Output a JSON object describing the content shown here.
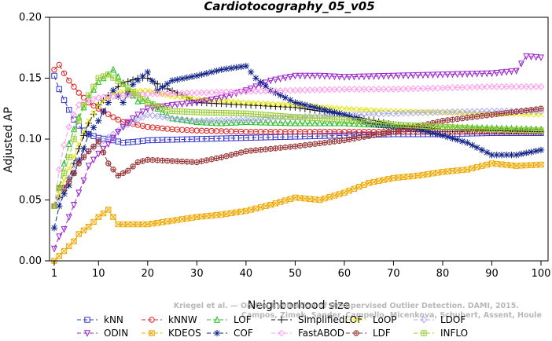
{
  "chart_data": {
    "type": "line",
    "title": "Cardiotocography_05_v05",
    "xlabel": "Neighborhood size",
    "ylabel": "Adjusted AP",
    "xlim": [
      1,
      100
    ],
    "ylim": [
      0,
      0.2
    ],
    "xticks": [
      1,
      10,
      20,
      30,
      40,
      50,
      60,
      70,
      80,
      90,
      100
    ],
    "yticks": [
      "0.00",
      "0.05",
      "0.10",
      "0.15",
      "0.20"
    ],
    "grid": false,
    "legend_placement": "bottom",
    "watermark": [
      "Kriegel et al. — On the Evaluation of Unsupervised Outlier Detection. DAMI, 2015.",
      "Campos, Zimek, Sander, Campello, Micenkova, Schubert, Assent, Houle"
    ],
    "series": [
      {
        "name": "kNN",
        "color": "#3333cc",
        "marker": "square",
        "dash": "6,3",
        "anchors": [
          [
            1,
            0.152
          ],
          [
            2,
            0.141
          ],
          [
            3,
            0.132
          ],
          [
            4,
            0.124
          ],
          [
            5,
            0.116
          ],
          [
            6,
            0.111
          ],
          [
            7,
            0.107
          ],
          [
            8,
            0.104
          ],
          [
            10,
            0.101
          ],
          [
            13,
            0.099
          ],
          [
            15,
            0.097
          ],
          [
            18,
            0.098
          ],
          [
            20,
            0.099
          ],
          [
            30,
            0.1
          ],
          [
            40,
            0.101
          ],
          [
            50,
            0.102
          ],
          [
            60,
            0.103
          ],
          [
            70,
            0.104
          ],
          [
            80,
            0.104
          ],
          [
            90,
            0.105
          ],
          [
            100,
            0.105
          ]
        ]
      },
      {
        "name": "kNNW",
        "color": "#dd2222",
        "marker": "circle",
        "dash": "6,3",
        "anchors": [
          [
            1,
            0.157
          ],
          [
            2,
            0.161
          ],
          [
            3,
            0.154
          ],
          [
            4,
            0.148
          ],
          [
            5,
            0.143
          ],
          [
            6,
            0.138
          ],
          [
            7,
            0.134
          ],
          [
            8,
            0.13
          ],
          [
            10,
            0.125
          ],
          [
            13,
            0.118
          ],
          [
            15,
            0.114
          ],
          [
            20,
            0.11
          ],
          [
            25,
            0.108
          ],
          [
            30,
            0.107
          ],
          [
            40,
            0.106
          ],
          [
            50,
            0.106
          ],
          [
            60,
            0.106
          ],
          [
            70,
            0.106
          ],
          [
            80,
            0.106
          ],
          [
            90,
            0.106
          ],
          [
            100,
            0.106
          ]
        ]
      },
      {
        "name": "LOF",
        "color": "#22bb22",
        "marker": "triangle",
        "dash": "6,3",
        "anchors": [
          [
            1,
            0.045
          ],
          [
            2,
            0.06
          ],
          [
            3,
            0.08
          ],
          [
            4,
            0.096
          ],
          [
            5,
            0.108
          ],
          [
            6,
            0.118
          ],
          [
            7,
            0.126
          ],
          [
            8,
            0.134
          ],
          [
            10,
            0.147
          ],
          [
            12,
            0.153
          ],
          [
            13,
            0.157
          ],
          [
            15,
            0.145
          ],
          [
            18,
            0.131
          ],
          [
            20,
            0.132
          ],
          [
            22,
            0.125
          ],
          [
            25,
            0.117
          ],
          [
            30,
            0.114
          ],
          [
            35,
            0.113
          ],
          [
            40,
            0.114
          ],
          [
            50,
            0.113
          ],
          [
            60,
            0.113
          ],
          [
            70,
            0.111
          ],
          [
            80,
            0.11
          ],
          [
            90,
            0.109
          ],
          [
            100,
            0.108
          ]
        ]
      },
      {
        "name": "SimplifiedLOF",
        "color": "#111111",
        "marker": "plus",
        "dash": "6,3",
        "anchors": [
          [
            1,
            0.045
          ],
          [
            2,
            0.052
          ],
          [
            3,
            0.058
          ],
          [
            4,
            0.068
          ],
          [
            5,
            0.08
          ],
          [
            6,
            0.092
          ],
          [
            7,
            0.103
          ],
          [
            8,
            0.113
          ],
          [
            10,
            0.128
          ],
          [
            13,
            0.14
          ],
          [
            15,
            0.146
          ],
          [
            18,
            0.15
          ],
          [
            20,
            0.15
          ],
          [
            23,
            0.143
          ],
          [
            26,
            0.138
          ],
          [
            30,
            0.13
          ],
          [
            35,
            0.129
          ],
          [
            40,
            0.128
          ],
          [
            50,
            0.126
          ],
          [
            60,
            0.12
          ],
          [
            70,
            0.112
          ],
          [
            80,
            0.108
          ],
          [
            90,
            0.107
          ],
          [
            100,
            0.106
          ]
        ]
      },
      {
        "name": "LoOP",
        "color": "#e6e600",
        "marker": "x",
        "dash": "6,3",
        "anchors": [
          [
            1,
            0.045
          ],
          [
            2,
            0.055
          ],
          [
            3,
            0.066
          ],
          [
            4,
            0.076
          ],
          [
            5,
            0.086
          ],
          [
            6,
            0.096
          ],
          [
            7,
            0.106
          ],
          [
            8,
            0.115
          ],
          [
            10,
            0.128
          ],
          [
            13,
            0.137
          ],
          [
            15,
            0.139
          ],
          [
            20,
            0.14
          ],
          [
            25,
            0.135
          ],
          [
            30,
            0.133
          ],
          [
            40,
            0.13
          ],
          [
            50,
            0.128
          ],
          [
            60,
            0.125
          ],
          [
            70,
            0.123
          ],
          [
            80,
            0.122
          ],
          [
            90,
            0.121
          ],
          [
            100,
            0.12
          ]
        ]
      },
      {
        "name": "LDOF",
        "color": "#aaaaee",
        "marker": "diamond",
        "dash": "6,3",
        "anchors": [
          [
            1,
            0.045
          ],
          [
            2,
            0.05
          ],
          [
            3,
            0.06
          ],
          [
            4,
            0.068
          ],
          [
            5,
            0.076
          ],
          [
            6,
            0.083
          ],
          [
            8,
            0.09
          ],
          [
            10,
            0.096
          ],
          [
            13,
            0.104
          ],
          [
            15,
            0.11
          ],
          [
            20,
            0.12
          ],
          [
            25,
            0.117
          ],
          [
            30,
            0.115
          ],
          [
            40,
            0.116
          ],
          [
            50,
            0.118
          ],
          [
            60,
            0.12
          ],
          [
            70,
            0.121
          ],
          [
            80,
            0.122
          ],
          [
            90,
            0.123
          ],
          [
            100,
            0.123
          ]
        ]
      },
      {
        "name": "ODIN",
        "color": "#9922cc",
        "marker": "tri-down",
        "dash": "6,3",
        "anchors": [
          [
            1,
            0.01
          ],
          [
            2,
            0.02
          ],
          [
            3,
            0.026
          ],
          [
            4,
            0.036
          ],
          [
            5,
            0.046
          ],
          [
            6,
            0.056
          ],
          [
            7,
            0.066
          ],
          [
            8,
            0.078
          ],
          [
            10,
            0.088
          ],
          [
            12,
            0.096
          ],
          [
            14,
            0.106
          ],
          [
            16,
            0.114
          ],
          [
            18,
            0.12
          ],
          [
            20,
            0.125
          ],
          [
            25,
            0.128
          ],
          [
            30,
            0.13
          ],
          [
            35,
            0.134
          ],
          [
            40,
            0.14
          ],
          [
            45,
            0.148
          ],
          [
            50,
            0.152
          ],
          [
            55,
            0.152
          ],
          [
            60,
            0.151
          ],
          [
            70,
            0.152
          ],
          [
            80,
            0.153
          ],
          [
            90,
            0.154
          ],
          [
            95,
            0.156
          ],
          [
            97,
            0.168
          ],
          [
            100,
            0.167
          ]
        ]
      },
      {
        "name": "KDEOS",
        "color": "#f0a800",
        "marker": "boxx",
        "dash": "6,3",
        "anchors": [
          [
            1,
            0.0
          ],
          [
            2,
            0.004
          ],
          [
            3,
            0.008
          ],
          [
            4,
            0.012
          ],
          [
            5,
            0.016
          ],
          [
            6,
            0.022
          ],
          [
            8,
            0.028
          ],
          [
            10,
            0.036
          ],
          [
            12,
            0.042
          ],
          [
            14,
            0.03
          ],
          [
            17,
            0.03
          ],
          [
            20,
            0.03
          ],
          [
            25,
            0.033
          ],
          [
            30,
            0.036
          ],
          [
            35,
            0.038
          ],
          [
            40,
            0.041
          ],
          [
            45,
            0.046
          ],
          [
            50,
            0.052
          ],
          [
            55,
            0.05
          ],
          [
            60,
            0.056
          ],
          [
            65,
            0.064
          ],
          [
            70,
            0.068
          ],
          [
            75,
            0.07
          ],
          [
            80,
            0.073
          ],
          [
            85,
            0.075
          ],
          [
            90,
            0.08
          ],
          [
            95,
            0.078
          ],
          [
            100,
            0.079
          ]
        ]
      },
      {
        "name": "COF",
        "color": "#112288",
        "marker": "star",
        "dash": "6,3",
        "anchors": [
          [
            1,
            0.027
          ],
          [
            2,
            0.045
          ],
          [
            3,
            0.055
          ],
          [
            4,
            0.062
          ],
          [
            5,
            0.072
          ],
          [
            6,
            0.082
          ],
          [
            7,
            0.092
          ],
          [
            8,
            0.104
          ],
          [
            10,
            0.115
          ],
          [
            12,
            0.13
          ],
          [
            13,
            0.14
          ],
          [
            15,
            0.13
          ],
          [
            17,
            0.145
          ],
          [
            20,
            0.155
          ],
          [
            22,
            0.14
          ],
          [
            25,
            0.148
          ],
          [
            30,
            0.152
          ],
          [
            35,
            0.157
          ],
          [
            40,
            0.16
          ],
          [
            42,
            0.15
          ],
          [
            45,
            0.14
          ],
          [
            50,
            0.13
          ],
          [
            55,
            0.125
          ],
          [
            60,
            0.12
          ],
          [
            65,
            0.113
          ],
          [
            70,
            0.11
          ],
          [
            75,
            0.108
          ],
          [
            80,
            0.103
          ],
          [
            85,
            0.097
          ],
          [
            90,
            0.087
          ],
          [
            95,
            0.087
          ],
          [
            100,
            0.091
          ]
        ]
      },
      {
        "name": "FastABOD",
        "color": "#ff99ee",
        "marker": "diamond",
        "dash": "6,3",
        "anchors": [
          [
            1,
            0.045
          ],
          [
            2,
            0.075
          ],
          [
            3,
            0.095
          ],
          [
            4,
            0.11
          ],
          [
            5,
            0.12
          ],
          [
            6,
            0.128
          ],
          [
            8,
            0.132
          ],
          [
            10,
            0.134
          ],
          [
            15,
            0.136
          ],
          [
            20,
            0.137
          ],
          [
            30,
            0.138
          ],
          [
            40,
            0.139
          ],
          [
            50,
            0.14
          ],
          [
            60,
            0.141
          ],
          [
            70,
            0.141
          ],
          [
            80,
            0.142
          ],
          [
            90,
            0.143
          ],
          [
            100,
            0.143
          ]
        ]
      },
      {
        "name": "LDF",
        "color": "#993333",
        "marker": "circleplus",
        "dash": "6,3",
        "anchors": [
          [
            1,
            0.045
          ],
          [
            2,
            0.06
          ],
          [
            3,
            0.06
          ],
          [
            4,
            0.065
          ],
          [
            5,
            0.072
          ],
          [
            6,
            0.08
          ],
          [
            8,
            0.09
          ],
          [
            10,
            0.098
          ],
          [
            12,
            0.08
          ],
          [
            14,
            0.07
          ],
          [
            16,
            0.074
          ],
          [
            18,
            0.081
          ],
          [
            20,
            0.083
          ],
          [
            25,
            0.082
          ],
          [
            30,
            0.081
          ],
          [
            35,
            0.085
          ],
          [
            40,
            0.09
          ],
          [
            50,
            0.094
          ],
          [
            60,
            0.099
          ],
          [
            70,
            0.106
          ],
          [
            80,
            0.115
          ],
          [
            90,
            0.12
          ],
          [
            100,
            0.125
          ]
        ]
      },
      {
        "name": "INFLO",
        "color": "#99cc33",
        "marker": "boxcross",
        "dash": "6,3",
        "anchors": [
          [
            1,
            0.045
          ],
          [
            2,
            0.06
          ],
          [
            3,
            0.072
          ],
          [
            4,
            0.085
          ],
          [
            5,
            0.1
          ],
          [
            6,
            0.115
          ],
          [
            7,
            0.128
          ],
          [
            8,
            0.136
          ],
          [
            10,
            0.15
          ],
          [
            12,
            0.153
          ],
          [
            15,
            0.145
          ],
          [
            20,
            0.13
          ],
          [
            25,
            0.123
          ],
          [
            30,
            0.122
          ],
          [
            40,
            0.121
          ],
          [
            50,
            0.118
          ],
          [
            60,
            0.116
          ],
          [
            70,
            0.112
          ],
          [
            80,
            0.11
          ],
          [
            90,
            0.108
          ],
          [
            100,
            0.107
          ]
        ]
      }
    ]
  }
}
